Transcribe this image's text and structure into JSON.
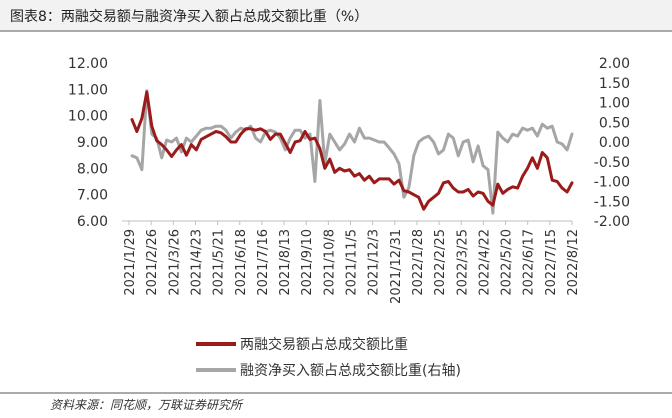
{
  "title": "图表8：两融交易额与融资净买入额占总成交额比重（%）",
  "source": "资料来源：同花顺，万联证券研究所",
  "chart_data": {
    "type": "line",
    "title": "图表8：两融交易额与融资净买入额占总成交额比重（%）",
    "x_tick_labels": [
      "2021/1/29",
      "2021/2/26",
      "2021/3/26",
      "2021/4/23",
      "2021/5/21",
      "2021/6/18",
      "2021/7/16",
      "2021/8/13",
      "2021/9/10",
      "2021/10/8",
      "2021/11/5",
      "2021/12/3",
      "2021/12/31",
      "2022/1/28",
      "2022/2/25",
      "2022/3/25",
      "2022/4/22",
      "2022/5/20",
      "2022/6/17",
      "2022/7/15",
      "2022/8/12"
    ],
    "left_axis": {
      "min": 6,
      "max": 12,
      "step": 1,
      "tick_labels": [
        "6.00",
        "7.00",
        "8.00",
        "9.00",
        "10.00",
        "11.00",
        "12.00"
      ]
    },
    "right_axis": {
      "min": -2,
      "max": 2,
      "step": 0.5,
      "tick_labels": [
        "-2.00",
        "-1.50",
        "-1.00",
        "-0.50",
        "0.00",
        "0.50",
        "1.00",
        "1.50",
        "2.00"
      ]
    },
    "grid": false,
    "legend_position": "bottom",
    "series": [
      {
        "name": "两融交易额占总成交额比重",
        "axis": "left",
        "color": "#9b1b1b",
        "values": [
          9.85,
          9.4,
          9.9,
          10.9,
          9.6,
          9.05,
          8.9,
          8.7,
          8.45,
          8.7,
          8.9,
          8.5,
          8.9,
          8.7,
          9.1,
          9.2,
          9.3,
          9.4,
          9.35,
          9.2,
          9.0,
          9.0,
          9.3,
          9.5,
          9.5,
          9.45,
          9.5,
          9.4,
          9.1,
          9.3,
          9.3,
          8.95,
          8.6,
          9.0,
          9.05,
          9.4,
          9.1,
          9.15,
          8.75,
          8.0,
          8.35,
          7.85,
          8.0,
          7.9,
          7.95,
          7.7,
          7.8,
          7.55,
          7.7,
          7.45,
          7.6,
          7.6,
          7.6,
          7.4,
          7.55,
          7.15,
          7.1,
          7.0,
          6.9,
          6.45,
          6.75,
          6.9,
          7.05,
          7.45,
          7.5,
          7.25,
          7.1,
          7.1,
          7.2,
          6.95,
          7.1,
          7.05,
          6.75,
          6.6,
          7.4,
          7.05,
          7.2,
          7.3,
          7.25,
          7.7,
          8.0,
          8.4,
          8.0,
          8.6,
          8.4,
          7.55,
          7.5,
          7.25,
          7.1,
          7.45
        ]
      },
      {
        "name": "融资净买入额占总成交额比重(右轴)",
        "axis": "right",
        "color": "#a6a6a6",
        "values": [
          -0.35,
          -0.4,
          -0.7,
          1.3,
          0.2,
          0.1,
          -0.4,
          0.05,
          0.0,
          0.1,
          -0.25,
          0.1,
          0.0,
          0.15,
          0.3,
          0.35,
          0.35,
          0.4,
          0.4,
          0.3,
          0.1,
          0.25,
          0.35,
          0.3,
          0.4,
          0.1,
          0.0,
          0.25,
          0.3,
          0.25,
          0.1,
          -0.2,
          0.1,
          0.3,
          0.3,
          0.1,
          0.2,
          -1.0,
          1.05,
          -0.55,
          0.2,
          0.0,
          -0.2,
          -0.05,
          0.2,
          0.0,
          0.35,
          0.1,
          0.1,
          0.05,
          0.0,
          0.0,
          -0.15,
          -0.3,
          -0.55,
          -1.4,
          -1.15,
          -0.35,
          0.0,
          0.1,
          0.15,
          0.0,
          -0.3,
          -0.2,
          0.2,
          0.1,
          -0.35,
          0.0,
          0.05,
          -0.5,
          -0.1,
          -0.6,
          -0.7,
          -1.8,
          0.25,
          0.1,
          0.0,
          0.2,
          0.15,
          0.35,
          0.3,
          0.35,
          0.15,
          0.45,
          0.35,
          0.4,
          0.0,
          -0.05,
          -0.2,
          0.2
        ]
      }
    ]
  }
}
